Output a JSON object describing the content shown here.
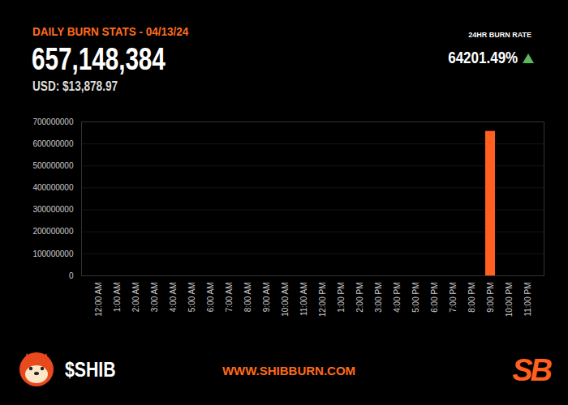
{
  "header": {
    "title": "DAILY BURN STATS - 04/13/24",
    "headline": "657,148,384",
    "subtitle": "USD: $13,878.97",
    "rate_label": "24HR BURN RATE",
    "rate": "64201.49%"
  },
  "chart_data": {
    "type": "bar",
    "categories": [
      "12:00 AM",
      "1:00 AM",
      "2:00 AM",
      "3:00 AM",
      "4:00 AM",
      "5:00 AM",
      "6:00 AM",
      "7:00 AM",
      "8:00 AM",
      "9:00 AM",
      "10:00 AM",
      "11:00 AM",
      "12:00 PM",
      "1:00 PM",
      "2:00 PM",
      "3:00 PM",
      "4:00 PM",
      "5:00 PM",
      "6:00 PM",
      "7:00 PM",
      "8:00 PM",
      "9:00 PM",
      "10:00 PM",
      "11:00 PM"
    ],
    "values": [
      0,
      0,
      0,
      0,
      0,
      0,
      0,
      0,
      0,
      0,
      0,
      0,
      0,
      0,
      0,
      0,
      0,
      0,
      0,
      0,
      0,
      657148384,
      0,
      0
    ],
    "color": "#ff5f1f",
    "ylim": [
      0,
      700000000
    ],
    "yticks": [
      0,
      100000000,
      200000000,
      300000000,
      400000000,
      500000000,
      600000000,
      700000000
    ],
    "grid": true
  },
  "footer": {
    "ticker": "$SHIB",
    "url": "WWW.SHIBBURN.COM",
    "logo": "SB"
  }
}
